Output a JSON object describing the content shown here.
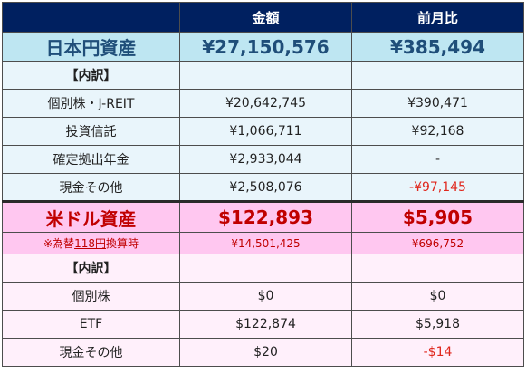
{
  "header": {
    "blank": "",
    "amount": "金額",
    "change": "前月比"
  },
  "japan": {
    "label": "日本円資産",
    "amount": "¥27,150,576",
    "change": "¥385,494",
    "breakdown_label": "【内訳】",
    "rows": [
      {
        "label": "個別株・J-REIT",
        "amount": "¥20,642,745",
        "change": "¥390,471",
        "change_negative": false
      },
      {
        "label": "投資信託",
        "amount": "¥1,066,711",
        "change": "¥92,168",
        "change_negative": false
      },
      {
        "label": "確定拠出年金",
        "amount": "¥2,933,044",
        "change": "-",
        "change_negative": false
      },
      {
        "label": "現金その他",
        "amount": "¥2,508,076",
        "change": "-¥97,145",
        "change_negative": true
      }
    ]
  },
  "us": {
    "label": "米ドル資産",
    "amount": "$122,893",
    "change": "$5,905",
    "rate_prefix": "※為替",
    "rate_value": "118円",
    "rate_suffix": "換算時",
    "rate_amount": "¥14,501,425",
    "rate_change": "¥696,752",
    "breakdown_label": "【内訳】",
    "rows": [
      {
        "label": "個別株",
        "amount": "$0",
        "change": "$0",
        "change_negative": false
      },
      {
        "label": "ETF",
        "amount": "$122,874",
        "change": "$5,918",
        "change_negative": false
      },
      {
        "label": "現金その他",
        "amount": "$20",
        "change": "-$14",
        "change_negative": true
      }
    ]
  },
  "colors": {
    "header_bg": "#002060",
    "japan_total_bg": "#bee6f2",
    "japan_row_bg": "#e9f5fb",
    "us_total_bg": "#ffc7f0",
    "us_row_bg": "#fff0fb",
    "negative": "#e0281e",
    "us_accent": "#c00000"
  }
}
